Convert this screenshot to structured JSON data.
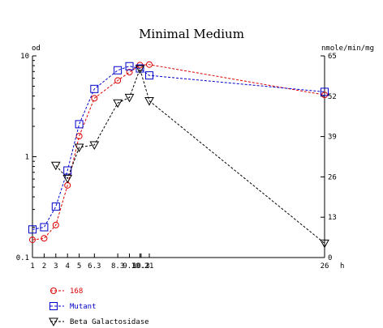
{
  "chart_data": {
    "type": "line",
    "title": "Minimal Medium",
    "xlabel": "h",
    "ylabel_left": "od",
    "ylabel_right": "nmole/min/mg",
    "x_ticks": [
      1,
      2,
      3,
      4,
      5,
      6.3,
      8.3,
      9.3,
      10.2,
      10.3,
      11,
      26
    ],
    "x_tick_labels": [
      "1",
      "2",
      "3",
      "4",
      "5",
      "6.3",
      "8.3",
      "9.3",
      "10.2",
      "10.3",
      "11",
      "26"
    ],
    "xlim": [
      1,
      26
    ],
    "y_left_scale": "log",
    "ylim_left": [
      0.1,
      10
    ],
    "y_left_ticks": [
      0.1,
      1,
      10
    ],
    "y_left_tick_labels": [
      "0.1",
      "1",
      "10"
    ],
    "ylim_right": [
      0,
      65
    ],
    "y_right_ticks": [
      0,
      13,
      26,
      39,
      52,
      65
    ],
    "y_right_tick_labels": [
      "0",
      "13",
      "26",
      "39",
      "52",
      "65"
    ],
    "grid": false,
    "legend_position": "bottom-left",
    "series": [
      {
        "name": "168",
        "axis": "left",
        "color": "#dd0000",
        "marker": "circle",
        "x": [
          1,
          2,
          3,
          4,
          5,
          6.3,
          8.3,
          9.3,
          10.2,
          11,
          26
        ],
        "y": [
          0.15,
          0.155,
          0.21,
          0.52,
          1.6,
          3.8,
          5.7,
          6.9,
          8.1,
          8.2,
          4.1
        ]
      },
      {
        "name": "Mutant",
        "axis": "left",
        "color": "#0000cc",
        "marker": "square",
        "x": [
          1,
          2,
          3,
          4,
          5,
          6.3,
          8.3,
          9.3,
          10.2,
          11,
          26
        ],
        "y": [
          0.19,
          0.2,
          0.32,
          0.73,
          2.1,
          4.7,
          7.2,
          7.9,
          7.5,
          6.4,
          4.4
        ]
      },
      {
        "name": "Beta Galactosidase",
        "axis": "right",
        "color": "#000000",
        "marker": "triangle-down",
        "x": [
          3,
          4,
          5,
          6.3,
          8.3,
          9.3,
          10.2,
          11,
          26
        ],
        "y": [
          29.7,
          25.5,
          35.5,
          36.3,
          49.8,
          51.6,
          60.8,
          50.5,
          4.6
        ]
      }
    ]
  }
}
